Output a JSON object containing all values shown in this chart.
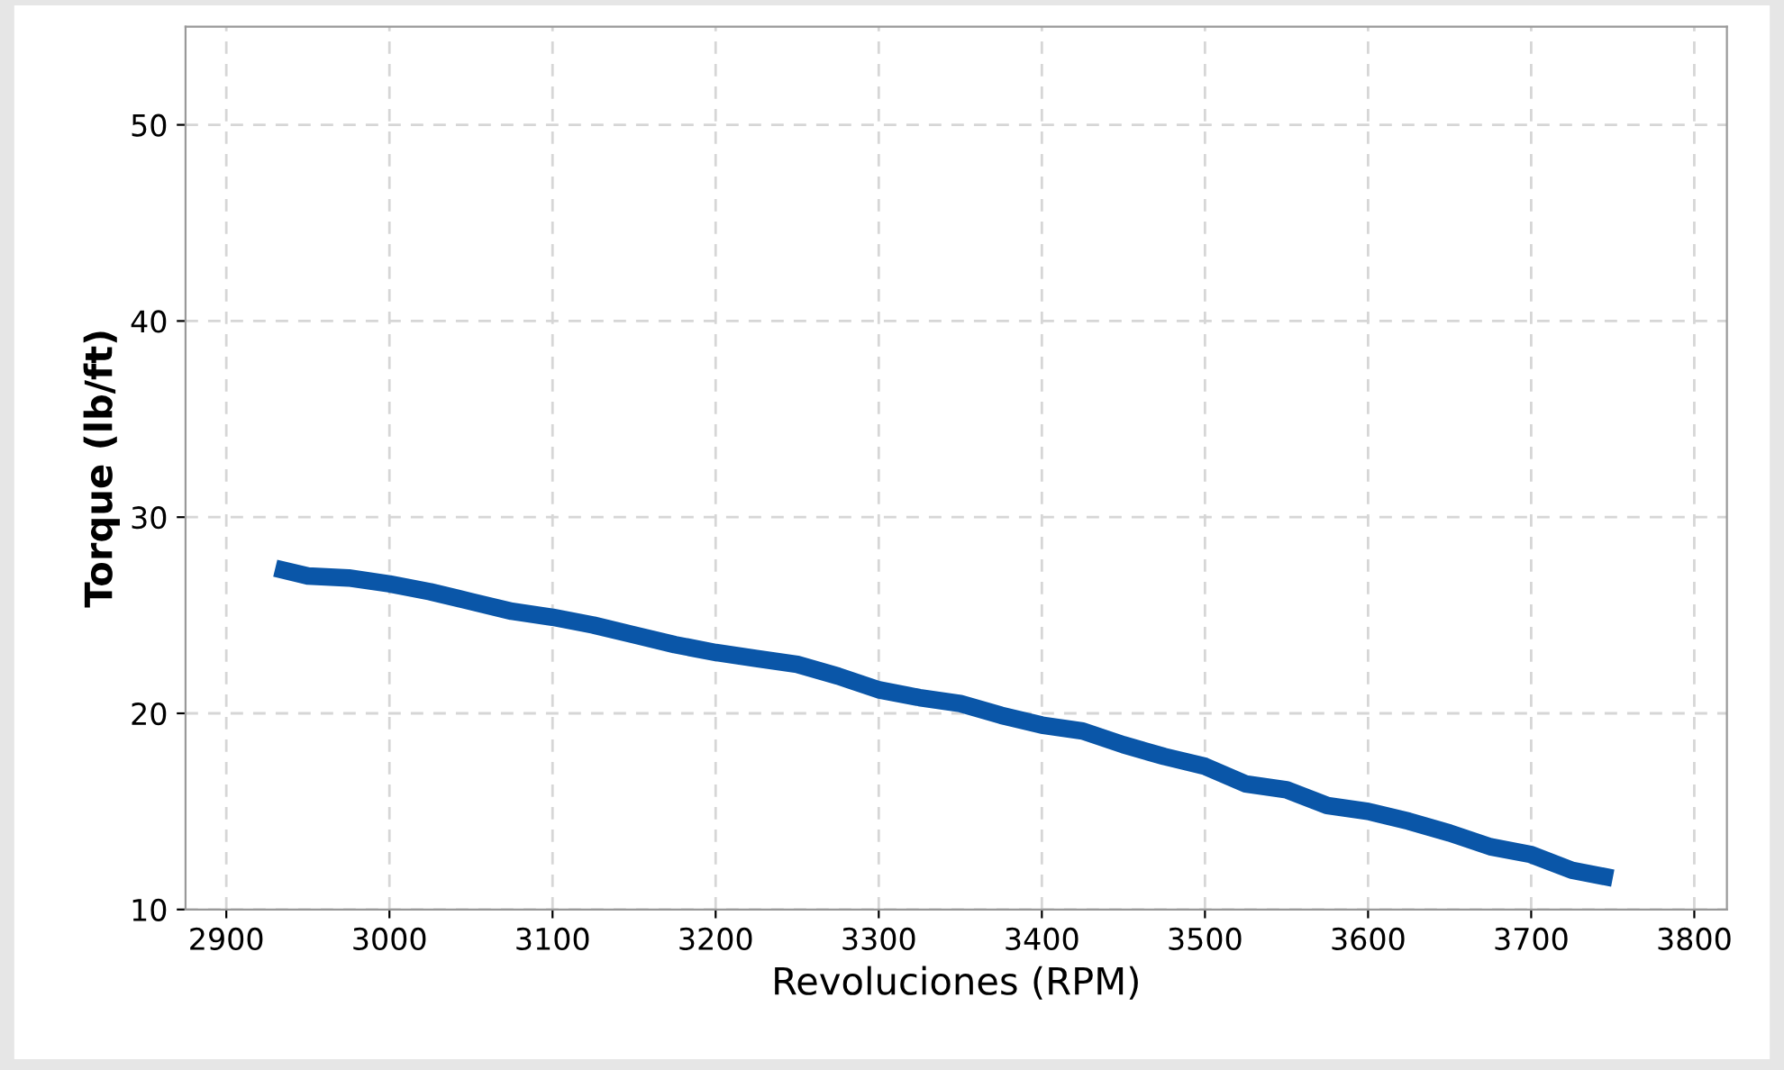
{
  "chart_data": {
    "type": "line",
    "xlabel": "Revoluciones (RPM)",
    "ylabel": "Torque (lb/ft)",
    "x": [
      2930,
      2950,
      2975,
      3000,
      3025,
      3050,
      3075,
      3100,
      3125,
      3150,
      3175,
      3200,
      3225,
      3250,
      3275,
      3300,
      3325,
      3350,
      3375,
      3400,
      3425,
      3450,
      3475,
      3500,
      3525,
      3550,
      3575,
      3600,
      3625,
      3650,
      3675,
      3700,
      3725,
      3750
    ],
    "series": [
      {
        "color": "#0a56a8",
        "values": [
          27.4,
          27.0,
          26.9,
          26.6,
          26.2,
          25.7,
          25.2,
          24.9,
          24.5,
          24.0,
          23.5,
          23.1,
          22.8,
          22.5,
          21.9,
          21.2,
          20.8,
          20.5,
          19.9,
          19.4,
          19.1,
          18.4,
          17.8,
          17.3,
          16.4,
          16.1,
          15.3,
          15.0,
          14.5,
          13.9,
          13.2,
          12.8,
          12.0,
          11.6
        ]
      }
    ],
    "xlim": [
      2875,
      3820
    ],
    "ylim": [
      10,
      55
    ],
    "xticks": [
      2900,
      3000,
      3100,
      3200,
      3300,
      3400,
      3500,
      3600,
      3700,
      3800
    ],
    "yticks": [
      10,
      20,
      30,
      40,
      50
    ],
    "grid": true,
    "marker": "none",
    "line_style": "solid"
  }
}
